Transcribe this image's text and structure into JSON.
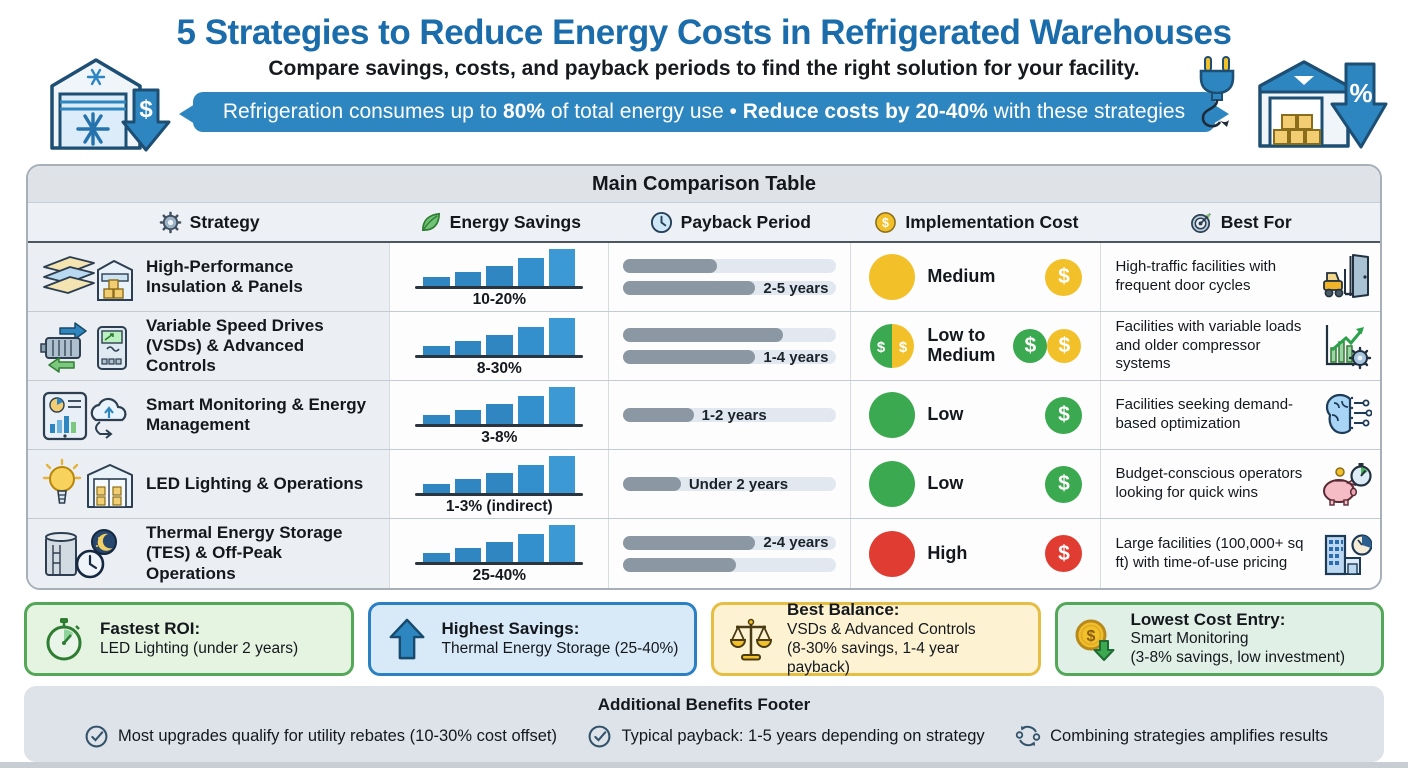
{
  "header": {
    "title": "5 Strategies to Reduce Energy Costs in Refrigerated Warehouses",
    "subtitle": "Compare savings, costs, and payback periods to find the right solution for your facility.",
    "banner": {
      "segment1": "Refrigeration consumes up to ",
      "highlight1": "80%",
      "segment2": " of total energy use • ",
      "highlight2": "Reduce costs by 20-40%",
      "segment3": " with these strategies"
    }
  },
  "colors": {
    "title_blue": "#1a6cab",
    "banner_blue": "#2e86c1",
    "bar_blue": "#2f86c1",
    "cost_low_green": "#3aa94f",
    "cost_medium_yellow": "#f2c029",
    "cost_high_red": "#e03c31"
  },
  "table": {
    "title": "Main Comparison Table",
    "columns": [
      {
        "label": "Strategy",
        "icon": "gear-icon"
      },
      {
        "label": "Energy Savings",
        "icon": "leaf-icon"
      },
      {
        "label": "Payback Period",
        "icon": "clock-icon"
      },
      {
        "label": "Implementation Cost",
        "icon": "dollar-coin-icon"
      },
      {
        "label": "Best For",
        "icon": "target-icon"
      }
    ],
    "rows": [
      {
        "strategy": "High-Performance Insulation & Panels",
        "savings": {
          "label": "10-20%",
          "bars": [
            22,
            35,
            50,
            70,
            92
          ]
        },
        "payback": {
          "bars": [
            {
              "fill": 44,
              "label": ""
            },
            {
              "fill": 62,
              "label": "2-5 years"
            }
          ]
        },
        "cost": {
          "level": "Medium",
          "color": "#f2c029",
          "coins": [
            "#f2c029"
          ]
        },
        "best_for": "High-traffic facilities with frequent door cycles"
      },
      {
        "strategy": "Variable Speed Drives (VSDs) & Advanced Controls",
        "savings": {
          "label": "8-30%",
          "bars": [
            22,
            35,
            50,
            70,
            92
          ]
        },
        "payback": {
          "bars": [
            {
              "fill": 75,
              "label": ""
            },
            {
              "fill": 62,
              "label": "1-4 years"
            }
          ]
        },
        "cost": {
          "level": "Low to Medium",
          "colors": [
            "#3aa94f",
            "#f2c029"
          ],
          "coins": [
            "#3aa94f",
            "#f2c029"
          ]
        },
        "best_for": "Facilities with variable loads and older compressor systems"
      },
      {
        "strategy": "Smart Monitoring & Energy Management",
        "savings": {
          "label": "3-8%",
          "bars": [
            22,
            35,
            50,
            70,
            92
          ]
        },
        "payback": {
          "bars": [
            {
              "fill": 33,
              "label": "1-2 years"
            }
          ]
        },
        "cost": {
          "level": "Low",
          "color": "#3aa94f",
          "coins": [
            "#3aa94f"
          ]
        },
        "best_for": "Facilities seeking demand-based optimization"
      },
      {
        "strategy": "LED Lighting & Operations",
        "savings": {
          "label": "1-3% (indirect)",
          "bars": [
            22,
            35,
            50,
            70,
            92
          ]
        },
        "payback": {
          "bars": [
            {
              "fill": 27,
              "label": "Under 2 years"
            }
          ]
        },
        "cost": {
          "level": "Low",
          "color": "#3aa94f",
          "coins": [
            "#3aa94f"
          ]
        },
        "best_for": "Budget-conscious operators looking for quick wins"
      },
      {
        "strategy": "Thermal Energy Storage (TES) & Off-Peak Operations",
        "savings": {
          "label": "25-40%",
          "bars": [
            22,
            35,
            50,
            70,
            92
          ]
        },
        "payback": {
          "bars": [
            {
              "fill": 62,
              "label": "2-4 years"
            },
            {
              "fill": 53,
              "label": ""
            }
          ]
        },
        "cost": {
          "level": "High",
          "color": "#e03c31",
          "coins": [
            "#e03c31"
          ]
        },
        "best_for": "Large facilities (100,000+ sq ft) with time-of-use pricing"
      }
    ]
  },
  "callouts": [
    {
      "title": "Fastest ROI:",
      "line1": "LED Lighting (under 2 years)",
      "line2": "",
      "accent": "#53a758",
      "bg": "#e5f3e1",
      "icon": "stopwatch-icon"
    },
    {
      "title": "Highest Savings:",
      "line1": "Thermal Energy Storage (25-40%)",
      "line2": "",
      "accent": "#2b7fc3",
      "bg": "#d8e9f7",
      "icon": "up-arrow-icon"
    },
    {
      "title": "Best Balance:",
      "line1": "VSDs & Advanced Controls",
      "line2": "(8-30% savings, 1-4 year payback)",
      "accent": "#e5be43",
      "bg": "#fdf3d3",
      "icon": "balance-scale-icon"
    },
    {
      "title": "Lowest Cost Entry:",
      "line1": "Smart Monitoring",
      "line2": "(3-8% savings, low investment)",
      "accent": "#53a758",
      "bg": "#e1f0e7",
      "icon": "coin-down-arrow-icon"
    }
  ],
  "footer": {
    "title": "Additional Benefits Footer",
    "items": [
      "Most upgrades qualify for utility rebates (10-30% cost offset)",
      "Typical payback: 1-5 years depending on strategy",
      "Combining strategies amplifies results"
    ]
  }
}
